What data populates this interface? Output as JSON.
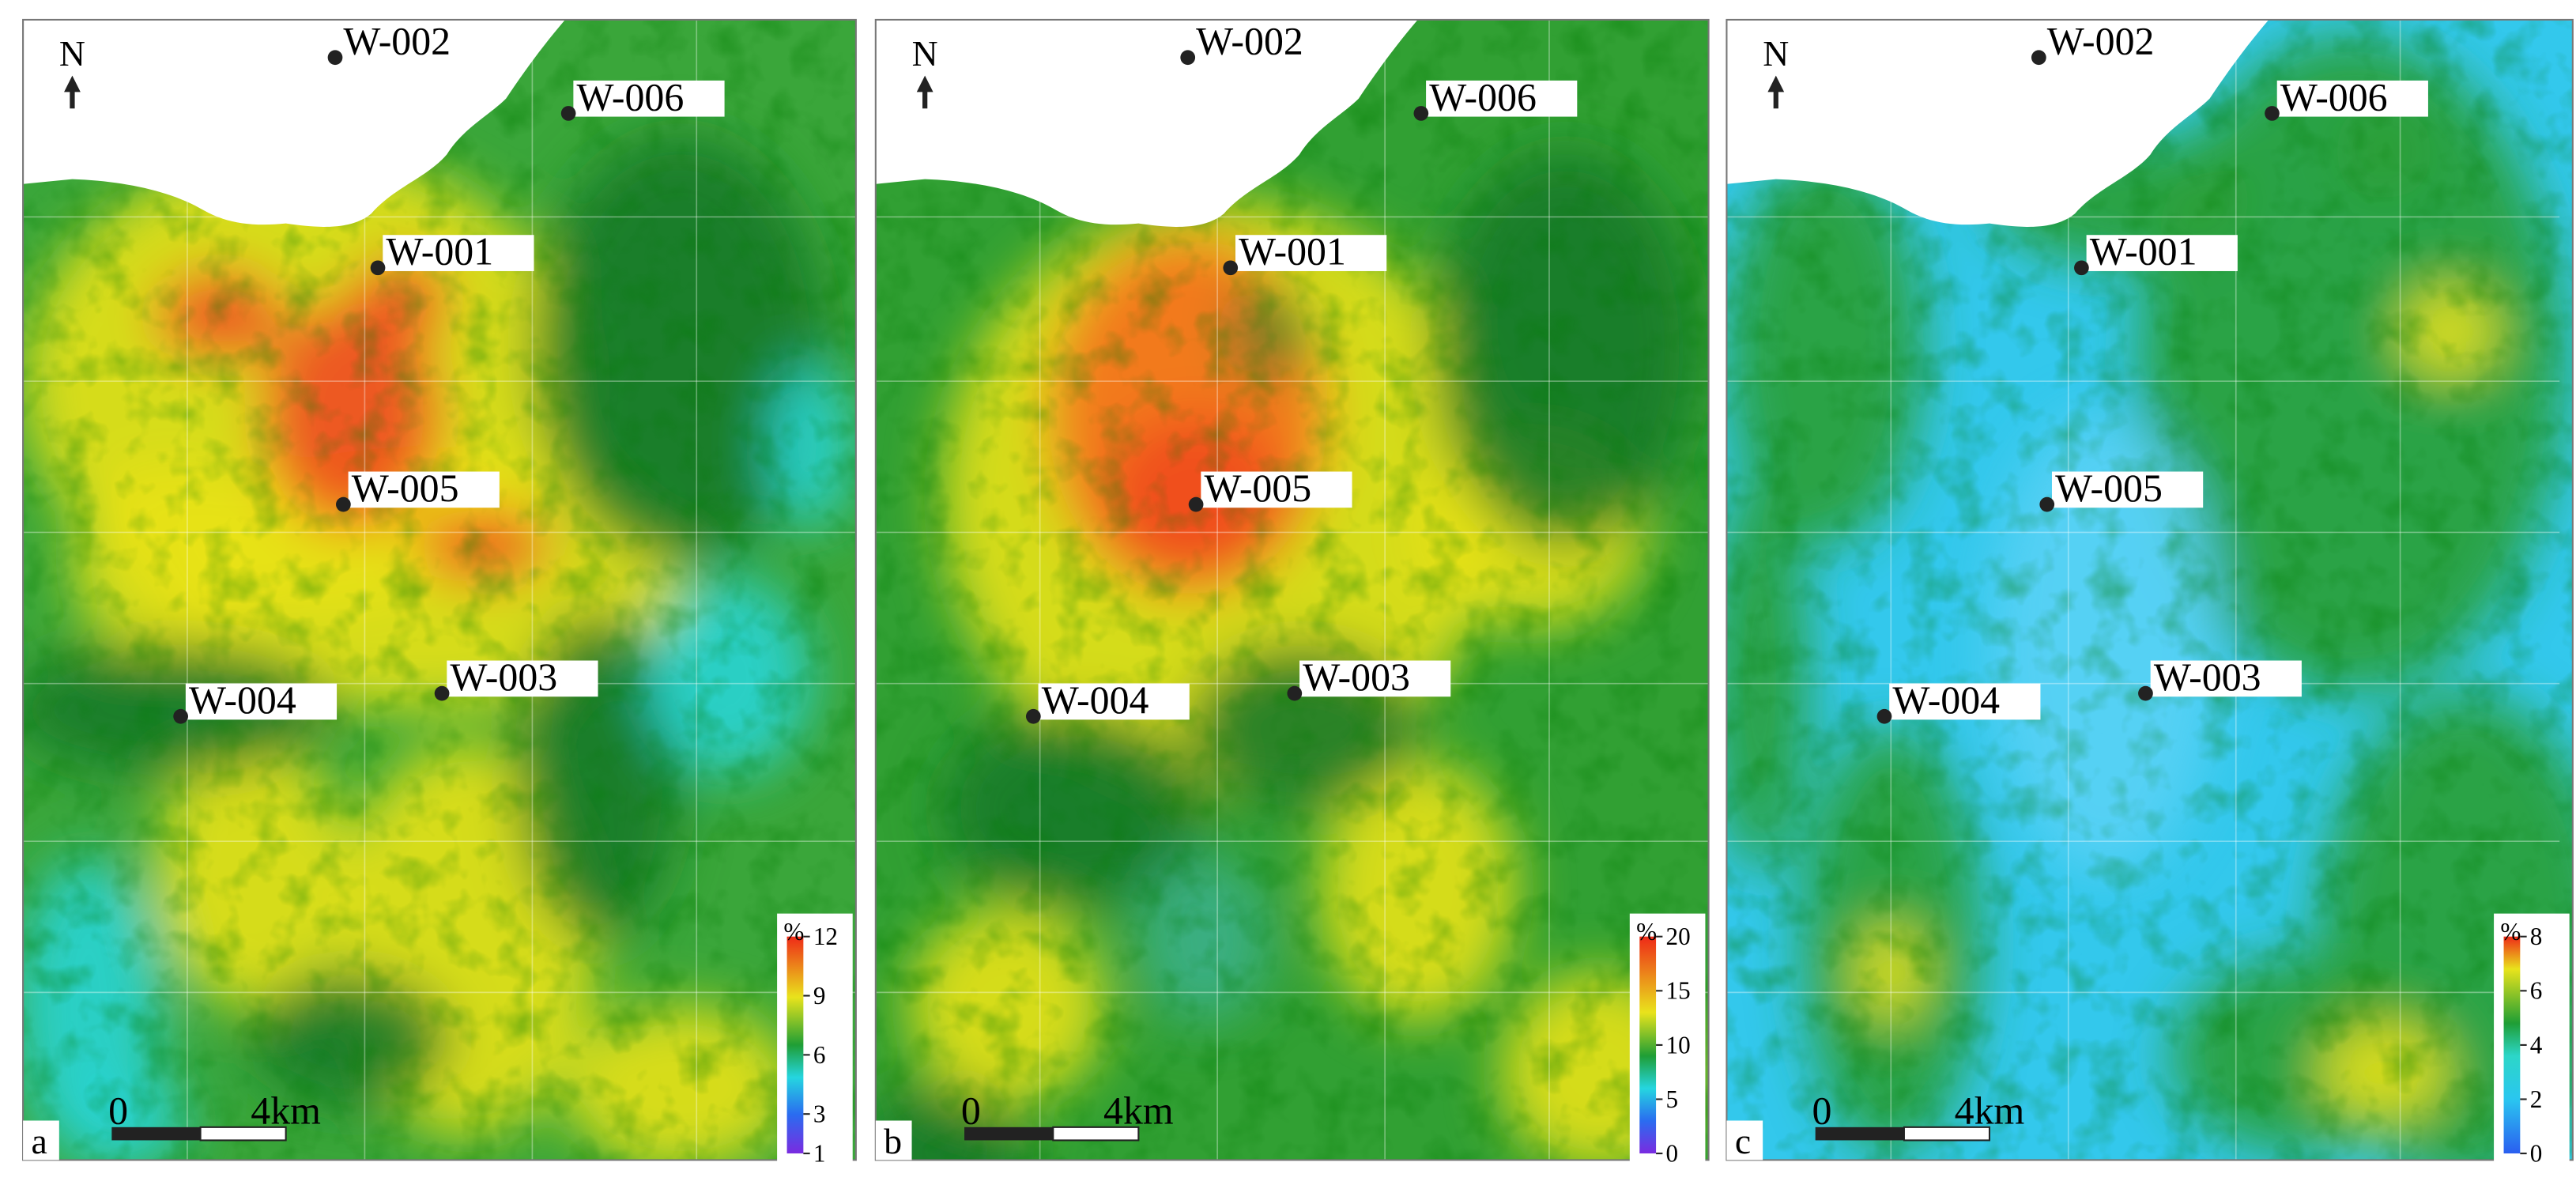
{
  "north": "N",
  "scale_bar": {
    "start": "0",
    "end": "4km"
  },
  "panels": [
    {
      "label": "a",
      "wells": [
        {
          "name": "W-002"
        },
        {
          "name": "W-006"
        },
        {
          "name": "W-001"
        },
        {
          "name": "W-005"
        },
        {
          "name": "W-004"
        },
        {
          "name": "W-003"
        }
      ],
      "colorbar": {
        "unit": "%",
        "ticks": [
          1,
          3,
          6,
          9,
          12
        ]
      }
    },
    {
      "label": "b",
      "wells": [
        {
          "name": "W-002"
        },
        {
          "name": "W-006"
        },
        {
          "name": "W-001"
        },
        {
          "name": "W-005"
        },
        {
          "name": "W-004"
        },
        {
          "name": "W-003"
        }
      ],
      "colorbar": {
        "unit": "%",
        "ticks": [
          0,
          5,
          10,
          15,
          20
        ]
      }
    },
    {
      "label": "c",
      "wells": [
        {
          "name": "W-002"
        },
        {
          "name": "W-006"
        },
        {
          "name": "W-001"
        },
        {
          "name": "W-005"
        },
        {
          "name": "W-004"
        },
        {
          "name": "W-003"
        }
      ],
      "colorbar": {
        "unit": "%",
        "ticks": [
          0,
          2,
          4,
          6,
          8
        ]
      }
    }
  ]
}
